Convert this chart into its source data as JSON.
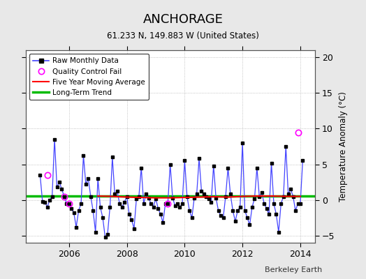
{
  "title": "ANCHORAGE",
  "subtitle": "61.233 N, 149.883 W (United States)",
  "ylabel": "Temperature Anomaly (°C)",
  "credit": "Berkeley Earth",
  "ylim": [
    -6,
    21
  ],
  "yticks": [
    -5,
    0,
    5,
    10,
    15,
    20
  ],
  "xlim": [
    2004.5,
    2014.5
  ],
  "xticks": [
    2006,
    2008,
    2010,
    2012,
    2014
  ],
  "background_color": "#e8e8e8",
  "plot_bg_color": "#ffffff",
  "raw_color": "#4444ff",
  "moving_avg_color": "#ff0000",
  "trend_color": "#00bb00",
  "qc_fail_color": "#ff00ff",
  "green_trend_value": 0.55,
  "raw_monthly_data": [
    [
      2005.0,
      3.5
    ],
    [
      2005.083,
      -0.2
    ],
    [
      2005.167,
      -0.3
    ],
    [
      2005.25,
      -1.0
    ],
    [
      2005.333,
      0.0
    ],
    [
      2005.417,
      0.5
    ],
    [
      2005.5,
      8.5
    ],
    [
      2005.583,
      1.8
    ],
    [
      2005.667,
      2.5
    ],
    [
      2005.75,
      1.5
    ],
    [
      2005.833,
      0.5
    ],
    [
      2005.917,
      -0.5
    ],
    [
      2006.0,
      -0.5
    ],
    [
      2006.083,
      -1.2
    ],
    [
      2006.167,
      -1.8
    ],
    [
      2006.25,
      -3.8
    ],
    [
      2006.333,
      -1.5
    ],
    [
      2006.417,
      -0.5
    ],
    [
      2006.5,
      6.2
    ],
    [
      2006.583,
      2.2
    ],
    [
      2006.667,
      3.0
    ],
    [
      2006.75,
      0.5
    ],
    [
      2006.833,
      -1.5
    ],
    [
      2006.917,
      -4.5
    ],
    [
      2007.0,
      3.0
    ],
    [
      2007.083,
      -1.0
    ],
    [
      2007.167,
      -2.5
    ],
    [
      2007.25,
      -5.2
    ],
    [
      2007.333,
      -4.8
    ],
    [
      2007.417,
      -1.0
    ],
    [
      2007.5,
      6.0
    ],
    [
      2007.583,
      0.8
    ],
    [
      2007.667,
      1.2
    ],
    [
      2007.75,
      -0.5
    ],
    [
      2007.833,
      -1.0
    ],
    [
      2007.917,
      -0.3
    ],
    [
      2008.0,
      0.5
    ],
    [
      2008.083,
      -2.0
    ],
    [
      2008.167,
      -2.8
    ],
    [
      2008.25,
      -4.0
    ],
    [
      2008.333,
      0.2
    ],
    [
      2008.417,
      0.5
    ],
    [
      2008.5,
      4.5
    ],
    [
      2008.583,
      -0.5
    ],
    [
      2008.667,
      0.8
    ],
    [
      2008.75,
      0.3
    ],
    [
      2008.833,
      -0.5
    ],
    [
      2008.917,
      -1.0
    ],
    [
      2009.0,
      0.2
    ],
    [
      2009.083,
      -1.2
    ],
    [
      2009.167,
      -2.0
    ],
    [
      2009.25,
      -3.2
    ],
    [
      2009.333,
      -0.5
    ],
    [
      2009.417,
      -0.5
    ],
    [
      2009.5,
      5.0
    ],
    [
      2009.583,
      0.3
    ],
    [
      2009.667,
      -0.8
    ],
    [
      2009.75,
      -0.5
    ],
    [
      2009.833,
      -1.0
    ],
    [
      2009.917,
      -0.5
    ],
    [
      2010.0,
      5.5
    ],
    [
      2010.083,
      0.5
    ],
    [
      2010.167,
      -1.5
    ],
    [
      2010.25,
      -2.5
    ],
    [
      2010.333,
      0.3
    ],
    [
      2010.417,
      0.8
    ],
    [
      2010.5,
      5.8
    ],
    [
      2010.583,
      1.2
    ],
    [
      2010.667,
      0.8
    ],
    [
      2010.75,
      0.5
    ],
    [
      2010.833,
      0.2
    ],
    [
      2010.917,
      -0.3
    ],
    [
      2011.0,
      4.8
    ],
    [
      2011.083,
      0.3
    ],
    [
      2011.167,
      -1.5
    ],
    [
      2011.25,
      -2.2
    ],
    [
      2011.333,
      -2.5
    ],
    [
      2011.417,
      0.5
    ],
    [
      2011.5,
      4.5
    ],
    [
      2011.583,
      0.8
    ],
    [
      2011.667,
      -1.5
    ],
    [
      2011.75,
      -3.0
    ],
    [
      2011.833,
      -1.5
    ],
    [
      2011.917,
      -1.0
    ],
    [
      2012.0,
      8.0
    ],
    [
      2012.083,
      -1.5
    ],
    [
      2012.167,
      -2.5
    ],
    [
      2012.25,
      -3.5
    ],
    [
      2012.333,
      -1.0
    ],
    [
      2012.417,
      0.2
    ],
    [
      2012.5,
      4.5
    ],
    [
      2012.583,
      0.5
    ],
    [
      2012.667,
      1.0
    ],
    [
      2012.75,
      -0.5
    ],
    [
      2012.833,
      -1.2
    ],
    [
      2012.917,
      -2.0
    ],
    [
      2013.0,
      5.2
    ],
    [
      2013.083,
      -0.5
    ],
    [
      2013.167,
      -2.0
    ],
    [
      2013.25,
      -4.5
    ],
    [
      2013.333,
      -0.5
    ],
    [
      2013.417,
      0.5
    ],
    [
      2013.5,
      7.5
    ],
    [
      2013.583,
      0.8
    ],
    [
      2013.667,
      1.5
    ],
    [
      2013.75,
      0.5
    ],
    [
      2013.833,
      -1.5
    ],
    [
      2013.917,
      -0.5
    ],
    [
      2014.0,
      -0.5
    ],
    [
      2014.083,
      5.5
    ]
  ],
  "qc_fail_points": [
    [
      2005.25,
      3.5
    ],
    [
      2005.833,
      0.5
    ],
    [
      2006.0,
      -0.5
    ],
    [
      2009.417,
      -0.5
    ],
    [
      2013.917,
      9.5
    ]
  ],
  "moving_avg_data": [
    [
      2007.0,
      0.55
    ],
    [
      2007.5,
      0.5
    ],
    [
      2008.0,
      0.4
    ],
    [
      2008.5,
      0.35
    ],
    [
      2009.0,
      0.3
    ],
    [
      2009.5,
      0.3
    ],
    [
      2010.0,
      0.35
    ],
    [
      2010.5,
      0.4
    ],
    [
      2011.0,
      0.45
    ],
    [
      2011.5,
      0.4
    ],
    [
      2012.0,
      0.5
    ],
    [
      2012.5,
      0.55
    ],
    [
      2013.0,
      0.55
    ],
    [
      2013.5,
      0.5
    ],
    [
      2014.0,
      0.5
    ]
  ]
}
